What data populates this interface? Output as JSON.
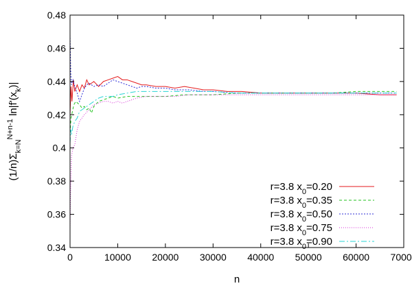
{
  "chart_data": {
    "type": "line",
    "xlabel": "n",
    "ylabel_parts": {
      "prefix": "(1/n)Σ",
      "sub": "k=N",
      "sup": "N+n-1",
      "mid": " ln|f'(x",
      "sub2": "k",
      "suffix": ")|"
    },
    "xlim": [
      0,
      70000
    ],
    "ylim": [
      0.34,
      0.48
    ],
    "x_ticks": [
      0,
      10000,
      20000,
      30000,
      40000,
      50000,
      60000,
      70000
    ],
    "y_ticks": [
      0.34,
      0.36,
      0.38,
      0.4,
      0.42,
      0.44,
      0.46,
      0.48
    ],
    "x_tick_labels": [
      "0",
      "10000",
      "20000",
      "30000",
      "40000",
      "50000",
      "60000",
      "70000"
    ],
    "y_tick_labels": [
      "0.34",
      "0.36",
      "0.38",
      "0.4",
      "0.42",
      "0.44",
      "0.46",
      "0.48"
    ],
    "legend_position": "bottom-right",
    "series": [
      {
        "legend": {
          "r": "r=3.8 x",
          "sub": "0",
          "val": "=0.20"
        },
        "color": "#e41a1c",
        "dash": "",
        "points": [
          [
            0,
            0.42
          ],
          [
            200,
            0.437
          ],
          [
            400,
            0.428
          ],
          [
            700,
            0.441
          ],
          [
            1000,
            0.434
          ],
          [
            1500,
            0.438
          ],
          [
            2000,
            0.434
          ],
          [
            2500,
            0.438
          ],
          [
            3000,
            0.436
          ],
          [
            3500,
            0.441
          ],
          [
            4000,
            0.438
          ],
          [
            5000,
            0.44
          ],
          [
            6000,
            0.437
          ],
          [
            7000,
            0.44
          ],
          [
            8000,
            0.441
          ],
          [
            9000,
            0.442
          ],
          [
            10000,
            0.443
          ],
          [
            11000,
            0.441
          ],
          [
            12000,
            0.441
          ],
          [
            13000,
            0.44
          ],
          [
            14000,
            0.439
          ],
          [
            15000,
            0.438
          ],
          [
            16000,
            0.438
          ],
          [
            18000,
            0.437
          ],
          [
            20000,
            0.437
          ],
          [
            22000,
            0.436
          ],
          [
            24000,
            0.437
          ],
          [
            26000,
            0.436
          ],
          [
            28000,
            0.435
          ],
          [
            30000,
            0.435
          ],
          [
            33000,
            0.434
          ],
          [
            36000,
            0.434
          ],
          [
            40000,
            0.433
          ],
          [
            45000,
            0.433
          ],
          [
            50000,
            0.433
          ],
          [
            55000,
            0.433
          ],
          [
            60000,
            0.433
          ],
          [
            65000,
            0.432
          ],
          [
            68500,
            0.432
          ]
        ]
      },
      {
        "legend": {
          "r": "r=3.8 x",
          "sub": "0",
          "val": "=0.35"
        },
        "color": "#21c21e",
        "dash": "4,3",
        "points": [
          [
            0,
            0.409
          ],
          [
            200,
            0.418
          ],
          [
            500,
            0.422
          ],
          [
            800,
            0.426
          ],
          [
            1200,
            0.428
          ],
          [
            2000,
            0.426
          ],
          [
            2500,
            0.424
          ],
          [
            3000,
            0.425
          ],
          [
            3500,
            0.423
          ],
          [
            4000,
            0.424
          ],
          [
            4500,
            0.421
          ],
          [
            5000,
            0.425
          ],
          [
            6000,
            0.428
          ],
          [
            7000,
            0.429
          ],
          [
            8000,
            0.43
          ],
          [
            9000,
            0.431
          ],
          [
            10000,
            0.43
          ],
          [
            12000,
            0.431
          ],
          [
            14000,
            0.431
          ],
          [
            16000,
            0.431
          ],
          [
            18000,
            0.431
          ],
          [
            20000,
            0.431
          ],
          [
            24000,
            0.432
          ],
          [
            28000,
            0.432
          ],
          [
            30000,
            0.432
          ],
          [
            35000,
            0.433
          ],
          [
            40000,
            0.433
          ],
          [
            45000,
            0.433
          ],
          [
            50000,
            0.433
          ],
          [
            55000,
            0.433
          ],
          [
            60000,
            0.434
          ],
          [
            65000,
            0.434
          ],
          [
            68500,
            0.434
          ]
        ]
      },
      {
        "legend": {
          "r": "r=3.8 x",
          "sub": "0",
          "val": "=0.50"
        },
        "color": "#2b2bd6",
        "dash": "2,2",
        "points": [
          [
            0,
            0.468
          ],
          [
            150,
            0.445
          ],
          [
            300,
            0.438
          ],
          [
            600,
            0.441
          ],
          [
            1000,
            0.437
          ],
          [
            1500,
            0.433
          ],
          [
            2000,
            0.428
          ],
          [
            2500,
            0.432
          ],
          [
            3000,
            0.436
          ],
          [
            3500,
            0.438
          ],
          [
            4000,
            0.439
          ],
          [
            5000,
            0.437
          ],
          [
            6000,
            0.438
          ],
          [
            7000,
            0.437
          ],
          [
            8000,
            0.439
          ],
          [
            9000,
            0.441
          ],
          [
            10000,
            0.44
          ],
          [
            11000,
            0.439
          ],
          [
            12000,
            0.438
          ],
          [
            13000,
            0.437
          ],
          [
            14000,
            0.436
          ],
          [
            15000,
            0.437
          ],
          [
            16000,
            0.437
          ],
          [
            18000,
            0.436
          ],
          [
            20000,
            0.436
          ],
          [
            22000,
            0.435
          ],
          [
            25000,
            0.435
          ],
          [
            28000,
            0.434
          ],
          [
            30000,
            0.434
          ],
          [
            35000,
            0.433
          ],
          [
            40000,
            0.433
          ],
          [
            45000,
            0.433
          ],
          [
            50000,
            0.433
          ],
          [
            55000,
            0.433
          ],
          [
            60000,
            0.433
          ],
          [
            65000,
            0.433
          ],
          [
            68500,
            0.433
          ]
        ]
      },
      {
        "legend": {
          "r": "r=3.8 x",
          "sub": "0",
          "val": "=0.75"
        },
        "color": "#d42bd4",
        "dash": "1,2",
        "points": [
          [
            0,
            0.352
          ],
          [
            100,
            0.372
          ],
          [
            300,
            0.395
          ],
          [
            600,
            0.4
          ],
          [
            1000,
            0.402
          ],
          [
            1500,
            0.411
          ],
          [
            2000,
            0.416
          ],
          [
            3000,
            0.42
          ],
          [
            4000,
            0.423
          ],
          [
            5000,
            0.426
          ],
          [
            6000,
            0.427
          ],
          [
            7000,
            0.428
          ],
          [
            8000,
            0.428
          ],
          [
            9000,
            0.427
          ],
          [
            10000,
            0.428
          ],
          [
            11000,
            0.427
          ],
          [
            12000,
            0.428
          ],
          [
            14000,
            0.43
          ],
          [
            16000,
            0.431
          ],
          [
            18000,
            0.431
          ],
          [
            20000,
            0.431
          ],
          [
            22000,
            0.431
          ],
          [
            25000,
            0.432
          ],
          [
            28000,
            0.432
          ],
          [
            30000,
            0.432
          ],
          [
            35000,
            0.432
          ],
          [
            40000,
            0.432
          ],
          [
            45000,
            0.432
          ],
          [
            50000,
            0.432
          ],
          [
            55000,
            0.432
          ],
          [
            60000,
            0.432
          ],
          [
            65000,
            0.432
          ],
          [
            68500,
            0.432
          ]
        ]
      },
      {
        "legend": {
          "r": "r=3.8 x",
          "sub": "0",
          "val": "=0.90"
        },
        "color": "#25d4d4",
        "dash": "8,3,2,3",
        "points": [
          [
            0,
            0.403
          ],
          [
            150,
            0.411
          ],
          [
            300,
            0.408
          ],
          [
            600,
            0.413
          ],
          [
            1000,
            0.416
          ],
          [
            1500,
            0.418
          ],
          [
            2000,
            0.422
          ],
          [
            3000,
            0.424
          ],
          [
            4000,
            0.426
          ],
          [
            5000,
            0.428
          ],
          [
            6000,
            0.43
          ],
          [
            7000,
            0.431
          ],
          [
            8000,
            0.431
          ],
          [
            9000,
            0.431
          ],
          [
            10000,
            0.432
          ],
          [
            12000,
            0.433
          ],
          [
            14000,
            0.434
          ],
          [
            16000,
            0.434
          ],
          [
            18000,
            0.434
          ],
          [
            20000,
            0.434
          ],
          [
            22000,
            0.434
          ],
          [
            25000,
            0.434
          ],
          [
            28000,
            0.434
          ],
          [
            30000,
            0.434
          ],
          [
            35000,
            0.433
          ],
          [
            40000,
            0.433
          ],
          [
            45000,
            0.433
          ],
          [
            50000,
            0.433
          ],
          [
            55000,
            0.433
          ],
          [
            60000,
            0.433
          ],
          [
            65000,
            0.433
          ],
          [
            68500,
            0.433
          ]
        ]
      }
    ]
  }
}
